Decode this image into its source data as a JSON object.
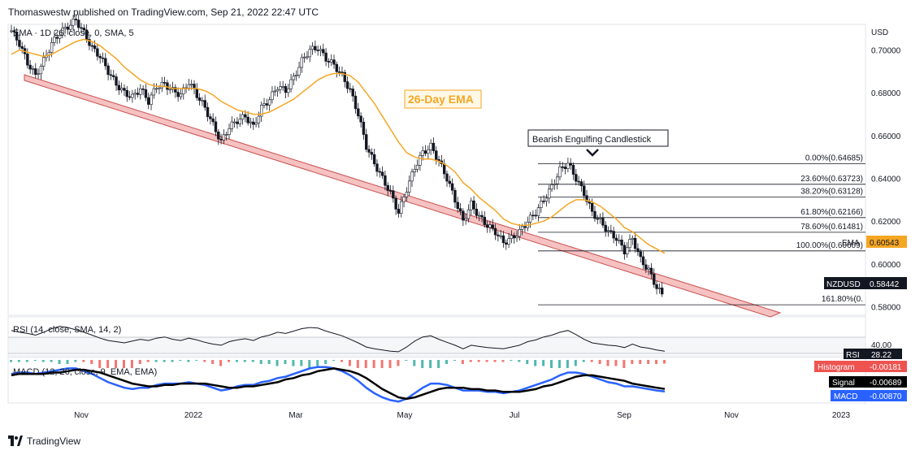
{
  "header": {
    "publisher": "Thomaswestw published on TradingView.com, Sep 21, 2022 22:47 UTC"
  },
  "footer": {
    "brand": "TradingView"
  },
  "chart_data": [
    {
      "type": "candlestick",
      "symbol": "NZDUSD",
      "indicator_legend": "EMA · 1D 26, close, 0, SMA, 5",
      "axis_unit": "USD",
      "yticks": [
        "0.70000",
        "0.68000",
        "0.66000",
        "0.64000",
        "0.62000",
        "0.60000",
        "0.58000"
      ],
      "ylim": [
        0.576,
        0.712
      ],
      "xticks": [
        "Nov",
        "2022",
        "Mar",
        "May",
        "Jul",
        "Sep",
        "Nov",
        "2023"
      ],
      "close_path": [
        0.709,
        0.703,
        0.694,
        0.688,
        0.695,
        0.703,
        0.708,
        0.711,
        0.714,
        0.708,
        0.701,
        0.697,
        0.69,
        0.684,
        0.68,
        0.678,
        0.682,
        0.676,
        0.683,
        0.684,
        0.681,
        0.679,
        0.685,
        0.679,
        0.673,
        0.665,
        0.657,
        0.664,
        0.667,
        0.669,
        0.664,
        0.673,
        0.677,
        0.683,
        0.681,
        0.687,
        0.695,
        0.7,
        0.701,
        0.696,
        0.693,
        0.688,
        0.681,
        0.67,
        0.655,
        0.647,
        0.64,
        0.633,
        0.624,
        0.635,
        0.645,
        0.652,
        0.655,
        0.648,
        0.64,
        0.63,
        0.62,
        0.628,
        0.622,
        0.618,
        0.615,
        0.61,
        0.612,
        0.615,
        0.62,
        0.624,
        0.63,
        0.636,
        0.644,
        0.647,
        0.64,
        0.633,
        0.624,
        0.62,
        0.615,
        0.612,
        0.606,
        0.612,
        0.602,
        0.597,
        0.589,
        0.584
      ],
      "ema_path": [
        0.698,
        0.7,
        0.699,
        0.698,
        0.697,
        0.698,
        0.7,
        0.702,
        0.704,
        0.705,
        0.704,
        0.702,
        0.699,
        0.696,
        0.692,
        0.689,
        0.686,
        0.684,
        0.683,
        0.683,
        0.682,
        0.682,
        0.682,
        0.682,
        0.681,
        0.679,
        0.676,
        0.674,
        0.672,
        0.671,
        0.67,
        0.67,
        0.671,
        0.673,
        0.675,
        0.677,
        0.68,
        0.683,
        0.686,
        0.688,
        0.689,
        0.689,
        0.688,
        0.685,
        0.68,
        0.675,
        0.669,
        0.663,
        0.657,
        0.652,
        0.65,
        0.649,
        0.649,
        0.648,
        0.646,
        0.643,
        0.638,
        0.635,
        0.631,
        0.628,
        0.625,
        0.621,
        0.619,
        0.618,
        0.618,
        0.619,
        0.62,
        0.622,
        0.625,
        0.628,
        0.63,
        0.63,
        0.629,
        0.627,
        0.624,
        0.621,
        0.617,
        0.615,
        0.612,
        0.609,
        0.607,
        0.605
      ],
      "ema_label": "EMA",
      "ema_value": "0.60543",
      "last_label": "NZDUSD",
      "last_value": "0.58442",
      "colors": {
        "up": "#131722",
        "down": "#131722",
        "ema": "#f5a623",
        "trend_fill": "#f6c1c1",
        "trend_stroke": "#c85050"
      },
      "fibonacci": [
        {
          "level": "0.00%(0.64685)",
          "price": 0.64685
        },
        {
          "level": "23.60%(0.63723)",
          "price": 0.63723
        },
        {
          "level": "38.20%(0.63128)",
          "price": 0.63128
        },
        {
          "level": "61.80%(0.62166)",
          "price": 0.62166
        },
        {
          "level": "78.60%(0.61481)",
          "price": 0.61481
        },
        {
          "level": "100.00%(0.60609)",
          "price": 0.60609
        },
        {
          "level": "161.80%(0.",
          "price": 0.5809
        }
      ],
      "annotations": {
        "ema_callout": "26-Day EMA",
        "candle_callout": "Bearish Engulfing Candlestick"
      }
    },
    {
      "type": "line",
      "name": "RSI",
      "legend": "RSI (14, close, SMA, 14, 2)",
      "ytick": "40.00",
      "last_label": "RSI",
      "last_value": "28.22",
      "values": [
        63,
        60,
        58,
        55,
        60,
        66,
        70,
        68,
        64,
        60,
        55,
        50,
        46,
        44,
        42,
        45,
        48,
        46,
        50,
        52,
        48,
        46,
        50,
        47,
        43,
        40,
        38,
        44,
        47,
        49,
        46,
        52,
        55,
        60,
        58,
        62,
        66,
        68,
        67,
        62,
        58,
        54,
        48,
        42,
        35,
        32,
        30,
        28,
        27,
        35,
        45,
        52,
        54,
        48,
        43,
        38,
        32,
        38,
        36,
        34,
        33,
        32,
        35,
        38,
        44,
        47,
        52,
        55,
        60,
        63,
        56,
        48,
        42,
        40,
        38,
        37,
        34,
        40,
        35,
        33,
        30,
        28
      ]
    },
    {
      "type": "histogram+line",
      "name": "MACD",
      "legend": "MACD (12, 26, close, 9, EMA, EMA)",
      "histogram": {
        "label": "Histogram",
        "value": "-0.00181",
        "color": "#ef5350"
      },
      "signal": {
        "label": "Signal",
        "value": "-0.00689",
        "color": "#000000"
      },
      "macd": {
        "label": "MACD",
        "value": "-0.00870",
        "color": "#2962ff"
      },
      "macd_path": [
        0.004,
        0.005,
        0.005,
        0.004,
        0.005,
        0.006,
        0.007,
        0.008,
        0.008,
        0.006,
        0.004,
        0.001,
        -0.002,
        -0.004,
        -0.006,
        -0.007,
        -0.006,
        -0.006,
        -0.004,
        -0.003,
        -0.003,
        -0.003,
        -0.002,
        -0.003,
        -0.004,
        -0.006,
        -0.008,
        -0.007,
        -0.005,
        -0.004,
        -0.004,
        -0.002,
        -0.001,
        0.001,
        0.002,
        0.004,
        0.006,
        0.008,
        0.009,
        0.009,
        0.008,
        0.006,
        0.003,
        -0.001,
        -0.006,
        -0.01,
        -0.013,
        -0.015,
        -0.016,
        -0.014,
        -0.01,
        -0.006,
        -0.003,
        -0.003,
        -0.004,
        -0.006,
        -0.008,
        -0.008,
        -0.008,
        -0.009,
        -0.009,
        -0.01,
        -0.009,
        -0.008,
        -0.006,
        -0.004,
        -0.002,
        0.0,
        0.003,
        0.005,
        0.005,
        0.004,
        0.002,
        0.0,
        -0.002,
        -0.003,
        -0.005,
        -0.005,
        -0.006,
        -0.007,
        -0.008,
        -0.0087
      ],
      "signal_path": [
        0.003,
        0.004,
        0.004,
        0.004,
        0.004,
        0.005,
        0.005,
        0.006,
        0.007,
        0.007,
        0.006,
        0.005,
        0.003,
        0.001,
        -0.001,
        -0.003,
        -0.004,
        -0.005,
        -0.005,
        -0.004,
        -0.004,
        -0.003,
        -0.003,
        -0.003,
        -0.003,
        -0.004,
        -0.005,
        -0.006,
        -0.006,
        -0.005,
        -0.005,
        -0.004,
        -0.003,
        -0.002,
        0.0,
        0.001,
        0.003,
        0.004,
        0.006,
        0.007,
        0.008,
        0.007,
        0.006,
        0.004,
        0.001,
        -0.003,
        -0.007,
        -0.01,
        -0.013,
        -0.014,
        -0.013,
        -0.011,
        -0.009,
        -0.007,
        -0.006,
        -0.006,
        -0.006,
        -0.007,
        -0.007,
        -0.008,
        -0.008,
        -0.009,
        -0.009,
        -0.009,
        -0.008,
        -0.007,
        -0.005,
        -0.004,
        -0.002,
        0.0,
        0.002,
        0.003,
        0.003,
        0.002,
        0.001,
        0.0,
        -0.001,
        -0.003,
        -0.004,
        -0.005,
        -0.006,
        -0.0069
      ]
    }
  ]
}
